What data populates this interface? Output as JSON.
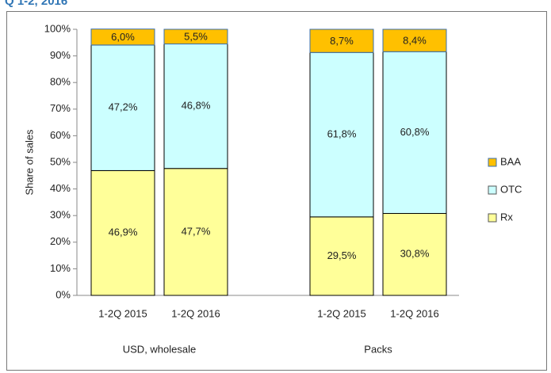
{
  "chart_data": {
    "type": "stacked_bar",
    "title": "Q 1-2, 2016",
    "ylabel": "Share of sales",
    "categories": [
      "1-2Q 2015",
      "1-2Q 2016",
      null,
      "1-2Q 2015",
      "1-2Q 2016"
    ],
    "group_labels": [
      "USD, wholesale",
      "Packs"
    ],
    "series": [
      {
        "name": "Rx",
        "color": "#ffff99",
        "edgecolor": "#000000",
        "values": [
          46.9,
          47.7,
          null,
          29.5,
          30.8
        ],
        "value_labels": [
          "46,9%",
          "47,7%",
          null,
          "29,5%",
          "30,8%"
        ]
      },
      {
        "name": "OTC",
        "color": "#ccffff",
        "edgecolor": "#000000",
        "values": [
          47.2,
          46.8,
          null,
          61.8,
          60.8
        ],
        "value_labels": [
          "47,2%",
          "46,8%",
          null,
          "61,8%",
          "60,8%"
        ]
      },
      {
        "name": "BAA",
        "color": "#ffc000",
        "edgecolor": "#3a6fb0",
        "values": [
          6.0,
          5.5,
          null,
          8.7,
          8.4
        ],
        "value_labels": [
          "6,0%",
          "5,5%",
          null,
          "8,7%",
          "8,4%"
        ]
      }
    ],
    "ylim": [
      0,
      100
    ],
    "yticks": [
      {
        "value": 0,
        "label": "0%"
      },
      {
        "value": 10,
        "label": "10%"
      },
      {
        "value": 20,
        "label": "20%"
      },
      {
        "value": 30,
        "label": "30%"
      },
      {
        "value": 40,
        "label": "40%"
      },
      {
        "value": 50,
        "label": "50%"
      },
      {
        "value": 60,
        "label": "60%"
      },
      {
        "value": 70,
        "label": "70%"
      },
      {
        "value": 80,
        "label": "80%"
      },
      {
        "value": 90,
        "label": "90%"
      },
      {
        "value": 100,
        "label": "100%"
      }
    ],
    "grid": false,
    "legend": "right"
  }
}
